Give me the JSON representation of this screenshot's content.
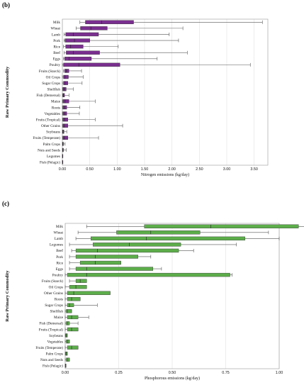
{
  "chart_data": [
    {
      "type": "boxplot",
      "panel": "(b)",
      "xlabel": "Nitrogen emissions (kg/day)",
      "ylabel": "Raw Primary Commodity",
      "xlim": [
        0,
        3.75
      ],
      "xticks": [
        "0.00",
        "0.50",
        "1.00",
        "1.50",
        "2.00",
        "2.50",
        "3.00",
        "3.50"
      ],
      "box_color": "#7a2f8f",
      "categories": [
        "Milk",
        "Wheat",
        "Lamb",
        "Pork",
        "Rice",
        "Beef",
        "Eggs",
        "Poultry",
        "Fruits (Starch)",
        "Oil Crops",
        "Sugar Crops",
        "Shellfish",
        "Fish (Demersal)",
        "Maize",
        "Roots",
        "Vegetables",
        "Fruits (Tropical)",
        "Other Grains",
        "Soybeans",
        "Fruits (Temperate)",
        "Palm Crops",
        "Nuts and Seeds",
        "Legumes",
        "Fish (Pelagic)"
      ],
      "series": [
        {
          "min": 0.32,
          "q1": 0.42,
          "median": 0.72,
          "q3": 1.3,
          "max": 3.65
        },
        {
          "min": 0.25,
          "q1": 0.33,
          "median": 0.52,
          "q3": 0.82,
          "max": 2.2
        },
        {
          "min": 0.03,
          "q1": 0.06,
          "median": 0.2,
          "q3": 0.66,
          "max": 1.95
        },
        {
          "min": 0.03,
          "q1": 0.05,
          "median": 0.22,
          "q3": 0.5,
          "max": 2.12
        },
        {
          "min": 0.02,
          "q1": 0.06,
          "median": 0.15,
          "q3": 0.38,
          "max": 1.02
        },
        {
          "min": 0.03,
          "q1": 0.07,
          "median": 0.2,
          "q3": 0.68,
          "max": 2.28
        },
        {
          "min": 0.02,
          "q1": 0.04,
          "median": 0.12,
          "q3": 0.53,
          "max": 1.73
        },
        {
          "min": 0.0,
          "q1": 0.02,
          "median": 0.3,
          "q3": 1.05,
          "max": 3.43
        },
        {
          "min": 0.02,
          "q1": 0.04,
          "median": 0.07,
          "q3": 0.12,
          "max": 0.35
        },
        {
          "min": 0.0,
          "q1": 0.02,
          "median": 0.05,
          "q3": 0.11,
          "max": 0.38
        },
        {
          "min": 0.0,
          "q1": 0.02,
          "median": 0.05,
          "q3": 0.1,
          "max": 0.36
        },
        {
          "min": 0.0,
          "q1": 0.01,
          "median": 0.03,
          "q3": 0.07,
          "max": 0.2
        },
        {
          "min": 0.0,
          "q1": 0.01,
          "median": 0.02,
          "q3": 0.04,
          "max": 0.12
        },
        {
          "min": 0.0,
          "q1": 0.01,
          "median": 0.05,
          "q3": 0.12,
          "max": 0.6
        },
        {
          "min": 0.0,
          "q1": 0.01,
          "median": 0.04,
          "q3": 0.08,
          "max": 0.32
        },
        {
          "min": 0.0,
          "q1": 0.01,
          "median": 0.04,
          "q3": 0.08,
          "max": 0.31
        },
        {
          "min": 0.0,
          "q1": 0.01,
          "median": 0.04,
          "q3": 0.1,
          "max": 0.6
        },
        {
          "min": 0.0,
          "q1": 0.01,
          "median": 0.03,
          "q3": 0.1,
          "max": 1.1
        },
        {
          "min": 0.0,
          "q1": 0.005,
          "median": 0.01,
          "q3": 0.03,
          "max": 0.08
        },
        {
          "min": 0.0,
          "q1": 0.01,
          "median": 0.03,
          "q3": 0.1,
          "max": 0.66
        },
        {
          "min": 0.0,
          "q1": 0.005,
          "median": 0.01,
          "q3": 0.02,
          "max": 0.05
        },
        {
          "min": 0.0,
          "q1": 0.005,
          "median": 0.01,
          "q3": 0.02,
          "max": 0.07
        },
        {
          "min": 0.0,
          "q1": 0.0,
          "median": 0.002,
          "q3": 0.005,
          "max": 0.01
        },
        {
          "min": 0.0,
          "q1": 0.0,
          "median": 0.002,
          "q3": 0.005,
          "max": 0.01
        }
      ]
    },
    {
      "type": "boxplot",
      "panel": "(c)",
      "xlabel": "Phosphorous emissions (kg/day)",
      "ylabel": "Raw Primary Commodity",
      "xlim": [
        0,
        1.0
      ],
      "xticks": [
        "0.00",
        "0.25",
        "0.50",
        "0.75",
        "1.00"
      ],
      "box_color": "#5cad4a",
      "categories": [
        "Milk",
        "Wheat",
        "Lamb",
        "Legumes",
        "Beef",
        "Pork",
        "Rice",
        "Eggs",
        "Poultry",
        "Fruits (Starch)",
        "Oil Crops",
        "Other Grains",
        "Roots",
        "Sugar Crops",
        "Shellfish",
        "Maize",
        "Fish (Demersal)",
        "Fruits (Tropical)",
        "Soybeans",
        "Vegetables",
        "Fruits (Temperate)",
        "Palm Crops",
        "Nuts and Seeds",
        "Fish (Pelagic)"
      ],
      "series": [
        {
          "min": 0.1,
          "q1": 0.37,
          "median": 0.68,
          "q3": 1.09,
          "max": 1.15
        },
        {
          "min": 0.06,
          "q1": 0.24,
          "median": 0.4,
          "q3": 0.63,
          "max": 0.95
        },
        {
          "min": 0.05,
          "q1": 0.12,
          "median": 0.38,
          "q3": 0.84,
          "max": 1.0
        },
        {
          "min": 0.02,
          "q1": 0.13,
          "median": 0.3,
          "q3": 0.54,
          "max": 0.8
        },
        {
          "min": 0.03,
          "q1": 0.05,
          "median": 0.15,
          "q3": 0.53,
          "max": 0.6
        },
        {
          "min": 0.02,
          "q1": 0.05,
          "median": 0.14,
          "q3": 0.34,
          "max": 0.4
        },
        {
          "min": 0.02,
          "q1": 0.07,
          "median": 0.14,
          "q3": 0.26,
          "max": 0.26
        },
        {
          "min": 0.02,
          "q1": 0.05,
          "median": 0.1,
          "q3": 0.41,
          "max": 0.45
        },
        {
          "min": 0.0,
          "q1": 0.01,
          "median": 0.1,
          "q3": 0.77,
          "max": 0.78
        },
        {
          "min": 0.02,
          "q1": 0.05,
          "median": 0.07,
          "q3": 0.1,
          "max": 0.1
        },
        {
          "min": 0.0,
          "q1": 0.02,
          "median": 0.05,
          "q3": 0.1,
          "max": 0.1
        },
        {
          "min": 0.0,
          "q1": 0.01,
          "median": 0.04,
          "q3": 0.21,
          "max": 0.21
        },
        {
          "min": 0.0,
          "q1": 0.01,
          "median": 0.03,
          "q3": 0.07,
          "max": 0.07
        },
        {
          "min": 0.0,
          "q1": 0.01,
          "median": 0.02,
          "q3": 0.04,
          "max": 0.15
        },
        {
          "min": 0.0,
          "q1": 0.005,
          "median": 0.01,
          "q3": 0.03,
          "max": 0.03
        },
        {
          "min": 0.0,
          "q1": 0.01,
          "median": 0.03,
          "q3": 0.06,
          "max": 0.11
        },
        {
          "min": 0.0,
          "q1": 0.005,
          "median": 0.01,
          "q3": 0.02,
          "max": 0.06
        },
        {
          "min": 0.0,
          "q1": 0.01,
          "median": 0.03,
          "q3": 0.06,
          "max": 0.06
        },
        {
          "min": 0.0,
          "q1": 0.002,
          "median": 0.005,
          "q3": 0.01,
          "max": 0.01
        },
        {
          "min": 0.0,
          "q1": 0.005,
          "median": 0.01,
          "q3": 0.02,
          "max": 0.02
        },
        {
          "min": 0.0,
          "q1": 0.01,
          "median": 0.03,
          "q3": 0.06,
          "max": 0.06
        },
        {
          "min": 0.0,
          "q1": 0.002,
          "median": 0.005,
          "q3": 0.01,
          "max": 0.01
        },
        {
          "min": 0.0,
          "q1": 0.005,
          "median": 0.01,
          "q3": 0.02,
          "max": 0.02
        },
        {
          "min": 0.0,
          "q1": 0.0,
          "median": 0.002,
          "q3": 0.004,
          "max": 0.004
        }
      ]
    }
  ]
}
